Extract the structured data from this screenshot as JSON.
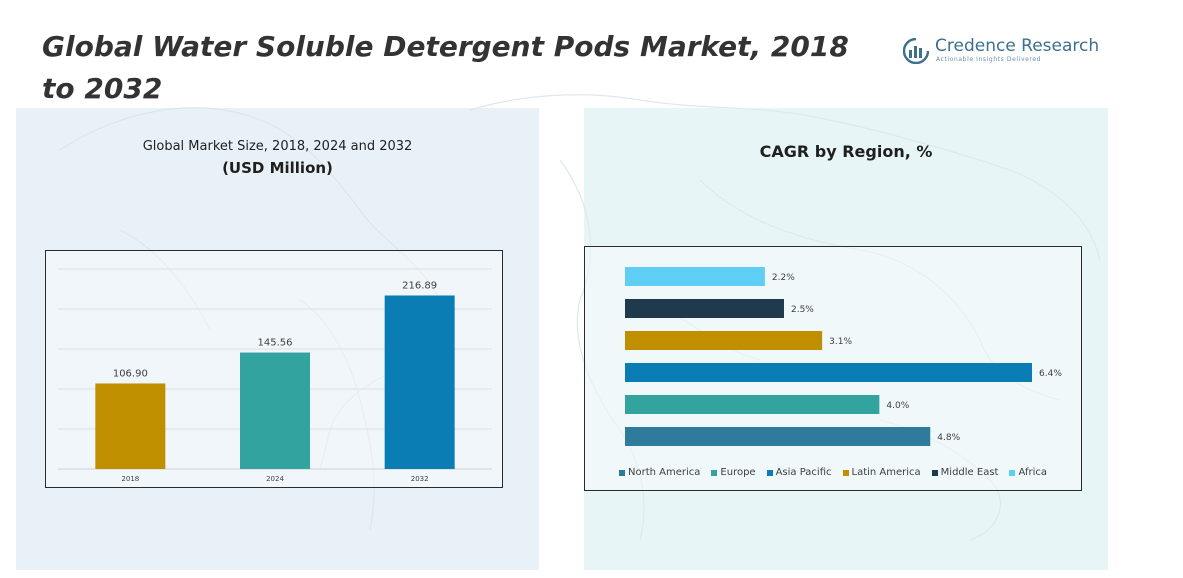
{
  "page": {
    "title": "Global Water Soluble Detergent Pods Market, 2018 to 2032"
  },
  "brand": {
    "name": "Credence Research",
    "tagline": "Actionable Insights Delivered",
    "color": "#3d6f8e"
  },
  "left_panel": {
    "subtitle": "Global Market Size, 2018, 2024 and 2032",
    "unit": "(USD Million)"
  },
  "right_panel": {
    "title": "CAGR by Region, %"
  },
  "chart_data": [
    {
      "type": "bar",
      "title": "Global Market Size, 2018, 2024 and 2032",
      "ylabel": "USD Million",
      "categories": [
        "2018",
        "2024",
        "2032"
      ],
      "values": [
        106.9,
        145.56,
        216.89
      ],
      "value_labels": [
        "106.90",
        "145.56",
        "216.89"
      ],
      "colors": [
        "#bf8f00",
        "#33a3a0",
        "#0a7db4"
      ],
      "ylim": [
        0,
        250
      ],
      "grid": true
    },
    {
      "type": "bar",
      "orientation": "horizontal",
      "title": "CAGR by Region, %",
      "categories": [
        "Africa",
        "Middle East",
        "Latin America",
        "Asia Pacific",
        "Europe",
        "North America"
      ],
      "values": [
        2.2,
        2.5,
        3.1,
        6.4,
        4.0,
        4.8
      ],
      "value_labels": [
        "2.2%",
        "2.5%",
        "3.1%",
        "6.4%",
        "4.0%",
        "4.8%"
      ],
      "colors": [
        "#5fcef5",
        "#1e3a4c",
        "#bf8f00",
        "#0a7db4",
        "#33a3a0",
        "#2e7b9b"
      ],
      "xlim": [
        0,
        6.4
      ],
      "legend": {
        "position": "bottom",
        "entries": [
          "North America",
          "Europe",
          "Asia Pacific",
          "Latin America",
          "Middle East",
          "Africa"
        ],
        "colors": [
          "#2e7b9b",
          "#33a3a0",
          "#0a7db4",
          "#bf8f00",
          "#1e3a4c",
          "#5fcef5"
        ]
      }
    }
  ]
}
